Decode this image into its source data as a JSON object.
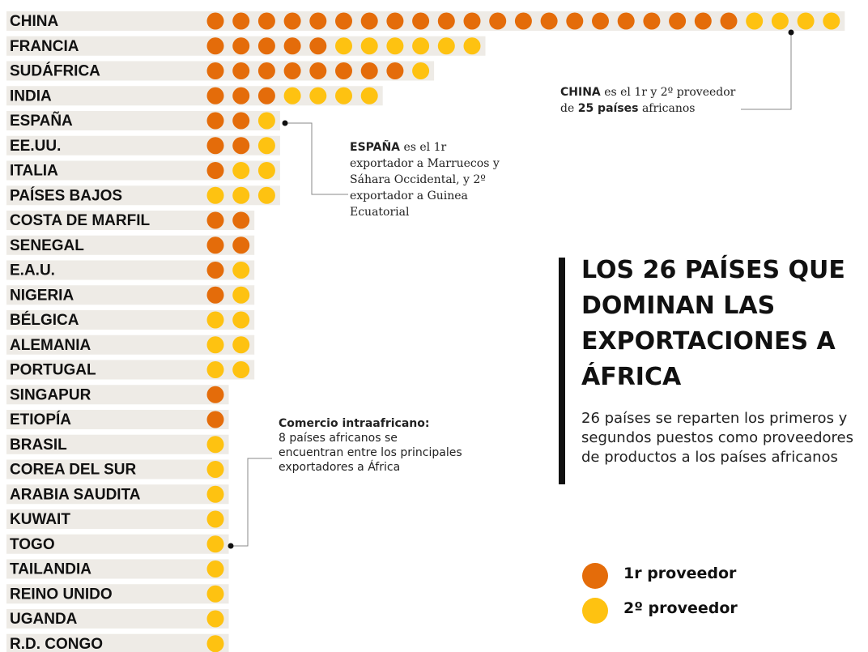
{
  "chart_data": {
    "type": "dot",
    "title": "LOS 26 PAÍSES QUE DOMINAN LAS EXPORTACIONES A ÁFRICA",
    "subtitle": "26 países se reparten los primeros y segundos puestos como proveedores de productos a los países africanos",
    "categories": [
      "CHINA",
      "FRANCIA",
      "SUDÁFRICA",
      "INDIA",
      "ESPAÑA",
      "EE.UU.",
      "ITALIA",
      "PAÍSES BAJOS",
      "COSTA DE MARFIL",
      "SENEGAL",
      "E.A.U.",
      "NIGERIA",
      "BÉLGICA",
      "ALEMANIA",
      "PORTUGAL",
      "SINGAPUR",
      "ETIOPÍA",
      "BRASIL",
      "COREA DEL SUR",
      "ARABIA SAUDITA",
      "KUWAIT",
      "TOGO",
      "TAILANDIA",
      "REINO UNIDO",
      "UGANDA",
      "R.D. CONGO"
    ],
    "series": [
      {
        "name": "1r proveedor",
        "color": "#e46c0a",
        "values": [
          21,
          5,
          8,
          3,
          2,
          2,
          1,
          0,
          2,
          2,
          1,
          1,
          0,
          0,
          0,
          1,
          1,
          0,
          0,
          0,
          0,
          0,
          0,
          0,
          0,
          0
        ]
      },
      {
        "name": "2º proveedor",
        "color": "#fec211",
        "values": [
          4,
          6,
          1,
          4,
          1,
          1,
          2,
          3,
          0,
          0,
          1,
          1,
          2,
          2,
          2,
          0,
          0,
          1,
          1,
          1,
          1,
          1,
          1,
          1,
          1,
          1
        ]
      }
    ],
    "annotations": {
      "china": [
        "CHINA",
        " es el 1r y 2º proveedor de ",
        "25 países",
        " africanos"
      ],
      "espana": [
        "ESPAÑA",
        " es el 1r exportador a Marruecos y Sáhara Occidental, y 2º exportador a Guinea Ecuatorial"
      ],
      "intra": [
        "Comercio intraafricano:",
        " 8 países africanos se encuentran entre los principales exportadores a África"
      ]
    }
  }
}
